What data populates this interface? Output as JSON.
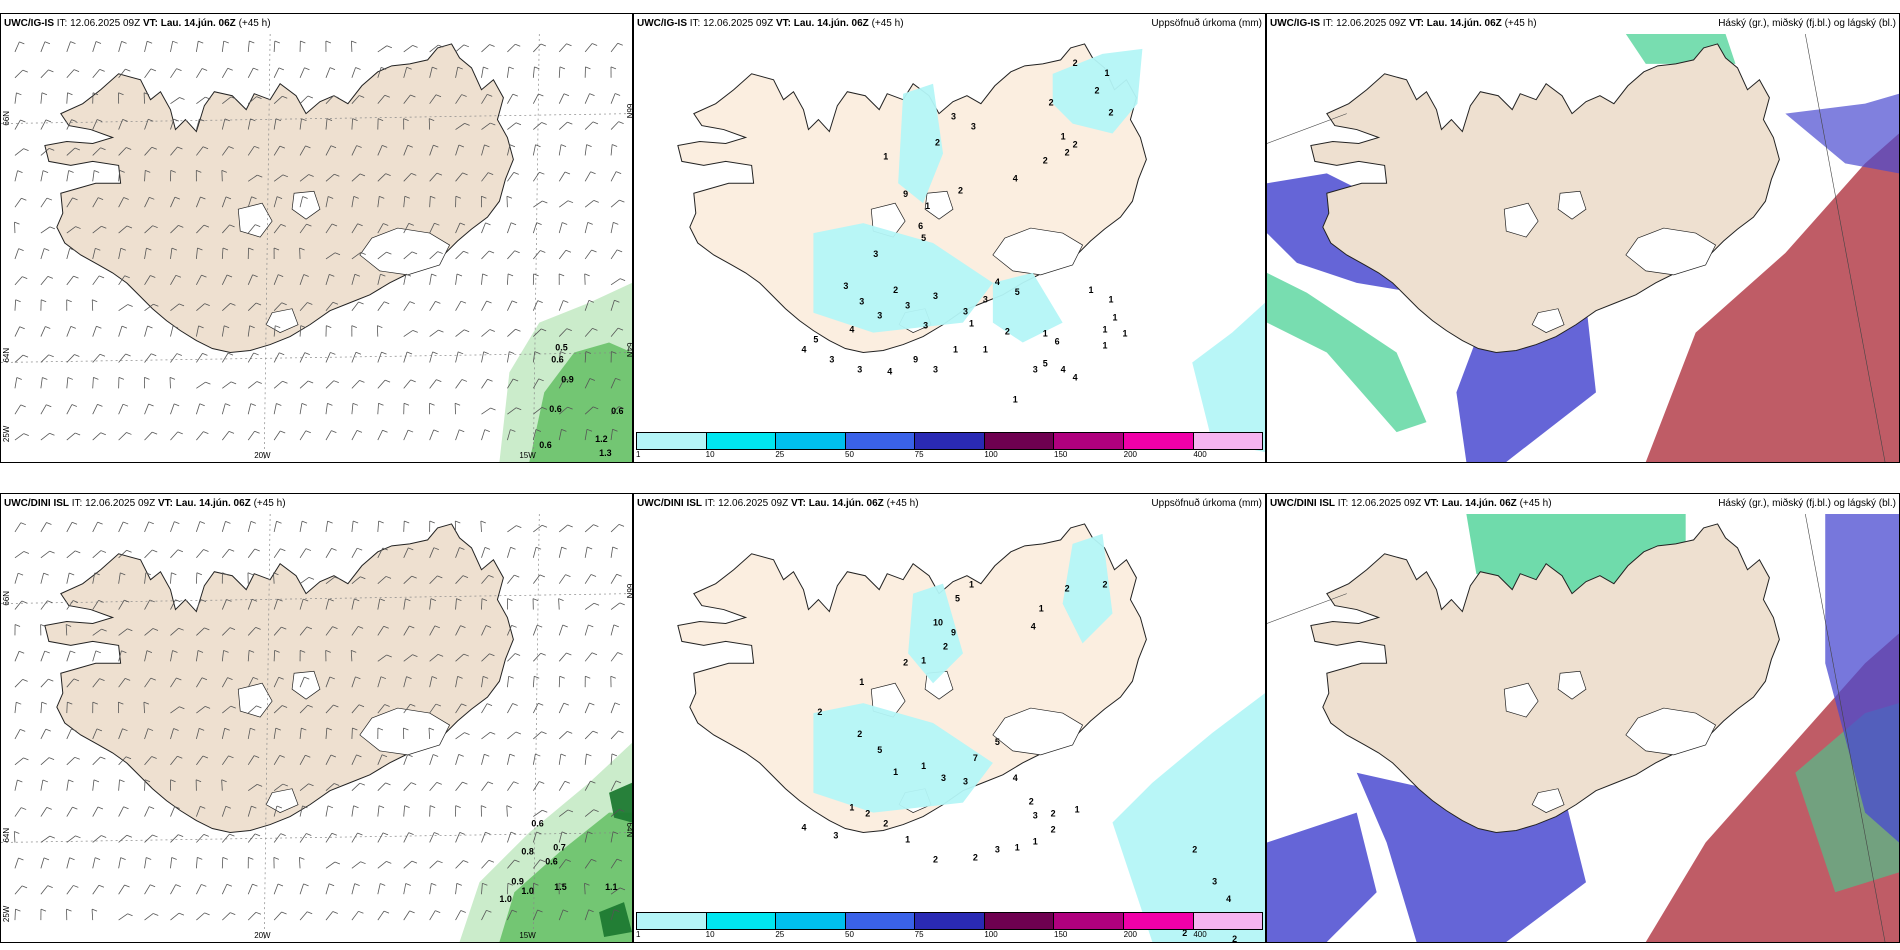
{
  "colors": {
    "land": "#eee0d0",
    "land_alt": "#fbeee0",
    "coast": "#222222",
    "precip": "#b4f5f7",
    "green_light": "#c8ebc8",
    "green_mid": "#6ec46e",
    "green_dark": "#1e7a32",
    "cloud_low": "#4a4ad0",
    "cloud_mid": "#b84a55",
    "cloud_high": "#3fcf8f"
  },
  "panels": [
    {
      "id": "ig-wind",
      "model": "UWC/IG-IS",
      "it_label": "IT:",
      "it_value": "12.06.2025 09Z",
      "vt_label": "VT:",
      "vt_value": "Lau. 14.jún. 06Z",
      "lead": "(+45 h)",
      "title": "",
      "lat_labels": [
        "66N",
        "64N",
        "25W"
      ],
      "lon_labels": [
        "20W",
        "15W"
      ],
      "lat_right": [
        "66N",
        "64N"
      ],
      "values": [
        "0.5",
        "0.6",
        "0.9",
        "0.6",
        "0.6",
        "0.6",
        "1.2",
        "1.3"
      ]
    },
    {
      "id": "ig-precip",
      "model": "UWC/IG-IS",
      "it_label": "IT:",
      "it_value": "12.06.2025 09Z",
      "vt_label": "VT:",
      "vt_value": "Lau. 14.jún. 06Z",
      "lead": "(+45 h)",
      "title": "Uppsöfnuð úrkoma (mm)",
      "values": [
        "2",
        "1",
        "2",
        "2",
        "2",
        "1",
        "2",
        "2",
        "2",
        "4",
        "3",
        "3",
        "2",
        "2",
        "1",
        "5",
        "1",
        "9",
        "6",
        "3",
        "3",
        "3",
        "2",
        "3",
        "1",
        "1",
        "2",
        "1",
        "6",
        "5",
        "4",
        "4",
        "5",
        "4",
        "3",
        "3",
        "3",
        "3",
        "3",
        "4",
        "5",
        "4",
        "3",
        "3",
        "4",
        "9",
        "3",
        "1",
        "1",
        "1",
        "1",
        "1",
        "1",
        "1",
        "3",
        "1"
      ]
    },
    {
      "id": "ig-cloud",
      "model": "UWC/IG-IS",
      "it_label": "IT:",
      "it_value": "12.06.2025 09Z",
      "vt_label": "VT:",
      "vt_value": "Lau. 14.jún. 06Z",
      "lead": "(+45 h)",
      "title": "Háský (gr.), miðský (fj.bl.) og lágský (bl.)"
    },
    {
      "id": "dini-wind",
      "model": "UWC/DINI ISL",
      "it_label": "IT:",
      "it_value": "12.06.2025 09Z",
      "vt_label": "VT:",
      "vt_value": "Lau. 14.jún. 06Z",
      "lead": "(+45 h)",
      "title": "",
      "lat_labels": [
        "66N",
        "64N",
        "25W"
      ],
      "lon_labels": [
        "20W",
        "15W"
      ],
      "lat_right": [
        "66N",
        "64N"
      ],
      "values": [
        "0.6",
        "0.8",
        "0.7",
        "0.6",
        "0.9",
        "1.0",
        "1.0",
        "1.5",
        "1.1"
      ]
    },
    {
      "id": "dini-precip",
      "model": "UWC/DINI ISL",
      "it_label": "IT:",
      "it_value": "12.06.2025 09Z",
      "vt_label": "VT:",
      "vt_value": "Lau. 14.jún. 06Z",
      "lead": "(+45 h)",
      "title": "Uppsöfnuð úrkoma (mm)",
      "values": [
        "2",
        "2",
        "1",
        "4",
        "1",
        "5",
        "10",
        "9",
        "2",
        "1",
        "2",
        "1",
        "2",
        "2",
        "5",
        "1",
        "1",
        "3",
        "3",
        "7",
        "5",
        "4",
        "2",
        "3",
        "2",
        "2",
        "1",
        "1",
        "3",
        "2",
        "2",
        "1",
        "2",
        "2",
        "1",
        "3",
        "4",
        "2",
        "3",
        "4",
        "4",
        "2",
        "2",
        "2",
        "1"
      ]
    },
    {
      "id": "dini-cloud",
      "model": "UWC/DINI ISL",
      "it_label": "IT:",
      "it_value": "12.06.2025 09Z",
      "vt_label": "VT:",
      "vt_value": "Lau. 14.jún. 06Z",
      "lead": "(+45 h)",
      "title": "Háský (gr.), miðský (fj.bl.) og lágský (bl.)"
    }
  ],
  "colorbar": {
    "labels": [
      "1",
      "10",
      "25",
      "50",
      "75",
      "100",
      "150",
      "200",
      "400"
    ],
    "colors": [
      "#b4f5f7",
      "#00e6f0",
      "#00c0ee",
      "#3a62e8",
      "#2a2ab4",
      "#6e0050",
      "#b0007e",
      "#f000a8",
      "#f5b4f0"
    ]
  }
}
